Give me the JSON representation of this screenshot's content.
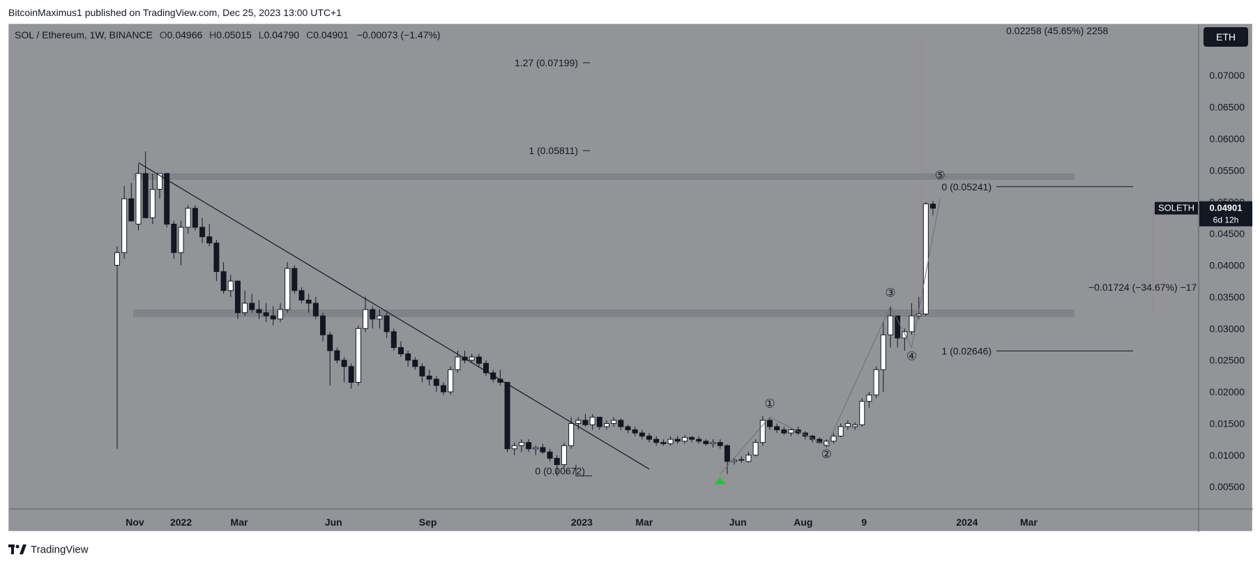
{
  "publish_line": "BitcoinMaximus1 published on TradingView.com, Dec 25, 2023 13:00 UTC+1",
  "footer_brand": "TradingView",
  "legend": {
    "symbol": "SOL / Ethereum, 1W, BINANCE",
    "o_label": "O",
    "o": "0.04966",
    "h_label": "H",
    "h": "0.05015",
    "l_label": "L",
    "l": "0.04790",
    "c_label": "C",
    "c": "0.04901",
    "change": "−0.00073 (−1.47%)"
  },
  "currency_button": "ETH",
  "price_tag": {
    "label": "SOLETH",
    "value": "0.04901",
    "countdown": "6d 12h",
    "color": "#131722"
  },
  "colors": {
    "background": "#929498",
    "up": "#ffffff",
    "down": "#131722",
    "zone": "#808388",
    "marker": "#22c32e"
  },
  "chart_data": {
    "type": "candlestick",
    "title": "SOL / Ethereum, 1W, BINANCE",
    "x_ticks": [
      "Nov",
      "2022",
      "Mar",
      "Jun",
      "Sep",
      "2023",
      "Mar",
      "Jun",
      "Aug",
      "9",
      "2024",
      "Mar"
    ],
    "y_ticks": [
      "0.07000",
      "0.06500",
      "0.06000",
      "0.05500",
      "0.05000",
      "0.04500",
      "0.04000",
      "0.03500",
      "0.03000",
      "0.02500",
      "0.02000",
      "0.01500",
      "0.01000",
      "0.00500"
    ],
    "ylim": [
      0.0015,
      0.0775
    ],
    "grid": false,
    "candles": [
      {
        "o": 0.04,
        "h": 0.043,
        "l": 0.011,
        "c": 0.042
      },
      {
        "o": 0.042,
        "h": 0.0525,
        "l": 0.041,
        "c": 0.0505
      },
      {
        "o": 0.0505,
        "h": 0.053,
        "l": 0.047,
        "c": 0.047
      },
      {
        "o": 0.0465,
        "h": 0.056,
        "l": 0.0455,
        "c": 0.0545
      },
      {
        "o": 0.0545,
        "h": 0.058,
        "l": 0.0475,
        "c": 0.0475
      },
      {
        "o": 0.0475,
        "h": 0.0545,
        "l": 0.0465,
        "c": 0.052
      },
      {
        "o": 0.052,
        "h": 0.0545,
        "l": 0.0505,
        "c": 0.0545
      },
      {
        "o": 0.0545,
        "h": 0.0545,
        "l": 0.046,
        "c": 0.0465
      },
      {
        "o": 0.0465,
        "h": 0.047,
        "l": 0.041,
        "c": 0.042
      },
      {
        "o": 0.042,
        "h": 0.047,
        "l": 0.04,
        "c": 0.046
      },
      {
        "o": 0.046,
        "h": 0.0495,
        "l": 0.045,
        "c": 0.049
      },
      {
        "o": 0.049,
        "h": 0.0495,
        "l": 0.0455,
        "c": 0.046
      },
      {
        "o": 0.046,
        "h": 0.0475,
        "l": 0.0435,
        "c": 0.0445
      },
      {
        "o": 0.0445,
        "h": 0.0465,
        "l": 0.043,
        "c": 0.0435
      },
      {
        "o": 0.0435,
        "h": 0.044,
        "l": 0.0375,
        "c": 0.039
      },
      {
        "o": 0.039,
        "h": 0.0405,
        "l": 0.0355,
        "c": 0.036
      },
      {
        "o": 0.036,
        "h": 0.0385,
        "l": 0.035,
        "c": 0.0375
      },
      {
        "o": 0.0375,
        "h": 0.0375,
        "l": 0.0315,
        "c": 0.0325
      },
      {
        "o": 0.0325,
        "h": 0.036,
        "l": 0.032,
        "c": 0.034
      },
      {
        "o": 0.034,
        "h": 0.0355,
        "l": 0.0325,
        "c": 0.033
      },
      {
        "o": 0.033,
        "h": 0.0345,
        "l": 0.0315,
        "c": 0.0325
      },
      {
        "o": 0.0325,
        "h": 0.034,
        "l": 0.031,
        "c": 0.032
      },
      {
        "o": 0.032,
        "h": 0.0335,
        "l": 0.0305,
        "c": 0.0315
      },
      {
        "o": 0.0315,
        "h": 0.034,
        "l": 0.031,
        "c": 0.033
      },
      {
        "o": 0.033,
        "h": 0.0405,
        "l": 0.0325,
        "c": 0.0395
      },
      {
        "o": 0.0395,
        "h": 0.04,
        "l": 0.0355,
        "c": 0.036
      },
      {
        "o": 0.036,
        "h": 0.0365,
        "l": 0.034,
        "c": 0.0345
      },
      {
        "o": 0.0345,
        "h": 0.0355,
        "l": 0.0325,
        "c": 0.034
      },
      {
        "o": 0.034,
        "h": 0.035,
        "l": 0.0315,
        "c": 0.032
      },
      {
        "o": 0.032,
        "h": 0.0325,
        "l": 0.028,
        "c": 0.029
      },
      {
        "o": 0.029,
        "h": 0.0295,
        "l": 0.021,
        "c": 0.0265
      },
      {
        "o": 0.0265,
        "h": 0.027,
        "l": 0.0245,
        "c": 0.025
      },
      {
        "o": 0.025,
        "h": 0.0255,
        "l": 0.0215,
        "c": 0.024
      },
      {
        "o": 0.024,
        "h": 0.0245,
        "l": 0.0205,
        "c": 0.0215
      },
      {
        "o": 0.0215,
        "h": 0.0305,
        "l": 0.021,
        "c": 0.03
      },
      {
        "o": 0.03,
        "h": 0.035,
        "l": 0.0295,
        "c": 0.033
      },
      {
        "o": 0.033,
        "h": 0.0335,
        "l": 0.03,
        "c": 0.0315
      },
      {
        "o": 0.0315,
        "h": 0.033,
        "l": 0.03,
        "c": 0.032
      },
      {
        "o": 0.032,
        "h": 0.0325,
        "l": 0.0285,
        "c": 0.0295
      },
      {
        "o": 0.0295,
        "h": 0.03,
        "l": 0.0265,
        "c": 0.027
      },
      {
        "o": 0.027,
        "h": 0.028,
        "l": 0.0255,
        "c": 0.026
      },
      {
        "o": 0.026,
        "h": 0.0265,
        "l": 0.024,
        "c": 0.025
      },
      {
        "o": 0.025,
        "h": 0.0255,
        "l": 0.0235,
        "c": 0.024
      },
      {
        "o": 0.024,
        "h": 0.0245,
        "l": 0.0215,
        "c": 0.0225
      },
      {
        "o": 0.0225,
        "h": 0.0235,
        "l": 0.021,
        "c": 0.022
      },
      {
        "o": 0.022,
        "h": 0.0225,
        "l": 0.02,
        "c": 0.021
      },
      {
        "o": 0.021,
        "h": 0.0215,
        "l": 0.0195,
        "c": 0.02
      },
      {
        "o": 0.02,
        "h": 0.024,
        "l": 0.0195,
        "c": 0.0235
      },
      {
        "o": 0.0235,
        "h": 0.0265,
        "l": 0.023,
        "c": 0.0255
      },
      {
        "o": 0.0255,
        "h": 0.0265,
        "l": 0.0245,
        "c": 0.025
      },
      {
        "o": 0.025,
        "h": 0.026,
        "l": 0.0245,
        "c": 0.0255
      },
      {
        "o": 0.0255,
        "h": 0.026,
        "l": 0.024,
        "c": 0.0245
      },
      {
        "o": 0.0245,
        "h": 0.025,
        "l": 0.0225,
        "c": 0.023
      },
      {
        "o": 0.023,
        "h": 0.0235,
        "l": 0.0215,
        "c": 0.022
      },
      {
        "o": 0.022,
        "h": 0.0235,
        "l": 0.021,
        "c": 0.0215
      },
      {
        "o": 0.0215,
        "h": 0.0215,
        "l": 0.0105,
        "c": 0.011
      },
      {
        "o": 0.011,
        "h": 0.012,
        "l": 0.01,
        "c": 0.0115
      },
      {
        "o": 0.0115,
        "h": 0.0125,
        "l": 0.0105,
        "c": 0.012
      },
      {
        "o": 0.012,
        "h": 0.0125,
        "l": 0.0105,
        "c": 0.011
      },
      {
        "o": 0.011,
        "h": 0.0115,
        "l": 0.01,
        "c": 0.0112
      },
      {
        "o": 0.0112,
        "h": 0.0118,
        "l": 0.0102,
        "c": 0.0105
      },
      {
        "o": 0.0105,
        "h": 0.011,
        "l": 0.009,
        "c": 0.0095
      },
      {
        "o": 0.0095,
        "h": 0.01,
        "l": 0.0067,
        "c": 0.0085
      },
      {
        "o": 0.0085,
        "h": 0.012,
        "l": 0.008,
        "c": 0.0115
      },
      {
        "o": 0.0115,
        "h": 0.016,
        "l": 0.011,
        "c": 0.015
      },
      {
        "o": 0.015,
        "h": 0.016,
        "l": 0.014,
        "c": 0.0155
      },
      {
        "o": 0.0155,
        "h": 0.0165,
        "l": 0.0145,
        "c": 0.0148
      },
      {
        "o": 0.0148,
        "h": 0.0165,
        "l": 0.014,
        "c": 0.016
      },
      {
        "o": 0.016,
        "h": 0.016,
        "l": 0.014,
        "c": 0.0145
      },
      {
        "o": 0.0145,
        "h": 0.0155,
        "l": 0.014,
        "c": 0.015
      },
      {
        "o": 0.015,
        "h": 0.016,
        "l": 0.0145,
        "c": 0.0155
      },
      {
        "o": 0.0155,
        "h": 0.0158,
        "l": 0.014,
        "c": 0.0145
      },
      {
        "o": 0.0145,
        "h": 0.0148,
        "l": 0.0135,
        "c": 0.014
      },
      {
        "o": 0.014,
        "h": 0.0145,
        "l": 0.013,
        "c": 0.0135
      },
      {
        "o": 0.0135,
        "h": 0.014,
        "l": 0.0125,
        "c": 0.013
      },
      {
        "o": 0.013,
        "h": 0.0135,
        "l": 0.012,
        "c": 0.0125
      },
      {
        "o": 0.0125,
        "h": 0.013,
        "l": 0.0115,
        "c": 0.012
      },
      {
        "o": 0.012,
        "h": 0.0125,
        "l": 0.0115,
        "c": 0.0118
      },
      {
        "o": 0.0118,
        "h": 0.013,
        "l": 0.0115,
        "c": 0.0125
      },
      {
        "o": 0.0125,
        "h": 0.013,
        "l": 0.0118,
        "c": 0.0122
      },
      {
        "o": 0.0122,
        "h": 0.0132,
        "l": 0.0118,
        "c": 0.0128
      },
      {
        "o": 0.0128,
        "h": 0.013,
        "l": 0.012,
        "c": 0.0125
      },
      {
        "o": 0.0125,
        "h": 0.013,
        "l": 0.0118,
        "c": 0.0122
      },
      {
        "o": 0.0122,
        "h": 0.0125,
        "l": 0.0115,
        "c": 0.0118
      },
      {
        "o": 0.0118,
        "h": 0.0125,
        "l": 0.0112,
        "c": 0.012
      },
      {
        "o": 0.012,
        "h": 0.0125,
        "l": 0.011,
        "c": 0.0115
      },
      {
        "o": 0.0115,
        "h": 0.0117,
        "l": 0.007,
        "c": 0.009
      },
      {
        "o": 0.009,
        "h": 0.0095,
        "l": 0.0085,
        "c": 0.0092
      },
      {
        "o": 0.0092,
        "h": 0.0098,
        "l": 0.0088,
        "c": 0.0093
      },
      {
        "o": 0.009,
        "h": 0.0105,
        "l": 0.0088,
        "c": 0.01
      },
      {
        "o": 0.01,
        "h": 0.0125,
        "l": 0.0098,
        "c": 0.012
      },
      {
        "o": 0.012,
        "h": 0.0162,
        "l": 0.0115,
        "c": 0.0155
      },
      {
        "o": 0.0155,
        "h": 0.0158,
        "l": 0.014,
        "c": 0.0145
      },
      {
        "o": 0.0145,
        "h": 0.015,
        "l": 0.0135,
        "c": 0.014
      },
      {
        "o": 0.014,
        "h": 0.0145,
        "l": 0.0132,
        "c": 0.0135
      },
      {
        "o": 0.0135,
        "h": 0.0142,
        "l": 0.013,
        "c": 0.014
      },
      {
        "o": 0.014,
        "h": 0.0145,
        "l": 0.0132,
        "c": 0.0135
      },
      {
        "o": 0.0135,
        "h": 0.0138,
        "l": 0.0125,
        "c": 0.013
      },
      {
        "o": 0.013,
        "h": 0.0132,
        "l": 0.012,
        "c": 0.0125
      },
      {
        "o": 0.0125,
        "h": 0.0128,
        "l": 0.0118,
        "c": 0.012
      },
      {
        "o": 0.0115,
        "h": 0.0125,
        "l": 0.0112,
        "c": 0.0122
      },
      {
        "o": 0.0122,
        "h": 0.0135,
        "l": 0.0118,
        "c": 0.013
      },
      {
        "o": 0.013,
        "h": 0.015,
        "l": 0.0128,
        "c": 0.0145
      },
      {
        "o": 0.0145,
        "h": 0.0155,
        "l": 0.014,
        "c": 0.015
      },
      {
        "o": 0.0145,
        "h": 0.0152,
        "l": 0.014,
        "c": 0.0148
      },
      {
        "o": 0.0148,
        "h": 0.019,
        "l": 0.0145,
        "c": 0.0185
      },
      {
        "o": 0.0185,
        "h": 0.02,
        "l": 0.0175,
        "c": 0.0195
      },
      {
        "o": 0.0195,
        "h": 0.024,
        "l": 0.019,
        "c": 0.0235
      },
      {
        "o": 0.0235,
        "h": 0.031,
        "l": 0.02,
        "c": 0.029
      },
      {
        "o": 0.029,
        "h": 0.0335,
        "l": 0.027,
        "c": 0.032
      },
      {
        "o": 0.032,
        "h": 0.032,
        "l": 0.027,
        "c": 0.0285
      },
      {
        "o": 0.0285,
        "h": 0.03,
        "l": 0.0265,
        "c": 0.0295
      },
      {
        "o": 0.0295,
        "h": 0.034,
        "l": 0.029,
        "c": 0.032
      },
      {
        "o": 0.032,
        "h": 0.035,
        "l": 0.0315,
        "c": 0.0323
      },
      {
        "o": 0.0323,
        "h": 0.05,
        "l": 0.032,
        "c": 0.0497
      },
      {
        "o": 0.04966,
        "h": 0.05015,
        "l": 0.0479,
        "c": 0.04901
      }
    ],
    "resistance_zones": [
      [
        0.0535,
        0.0545
      ],
      [
        0.0318,
        0.033
      ]
    ],
    "trendline": [
      [
        3,
        0.0562
      ],
      [
        75,
        0.0078
      ]
    ],
    "fib_levels_left": [
      {
        "label": "1.27 (0.07199)",
        "value": 0.07199
      },
      {
        "label": "1 (0.05811)",
        "value": 0.05811
      },
      {
        "label": "0 (0.00672)",
        "value": 0.00672
      }
    ],
    "fib_levels_right": [
      {
        "label": "0 (0.05241)",
        "value": 0.05241
      },
      {
        "label": "1 (0.02646)",
        "value": 0.02646
      }
    ],
    "measure_top": "0.02258 (45.65%) 2258",
    "measure_bottom": "−0.01724 (−34.67%) −17",
    "wave_labels": [
      "①",
      "②",
      "③",
      "④",
      "⑤"
    ],
    "wave_points": [
      [
        85,
        0.007
      ],
      [
        92,
        0.016
      ],
      [
        100,
        0.0115
      ],
      [
        109,
        0.0335
      ],
      [
        112,
        0.027
      ],
      [
        116,
        0.0505
      ]
    ]
  }
}
